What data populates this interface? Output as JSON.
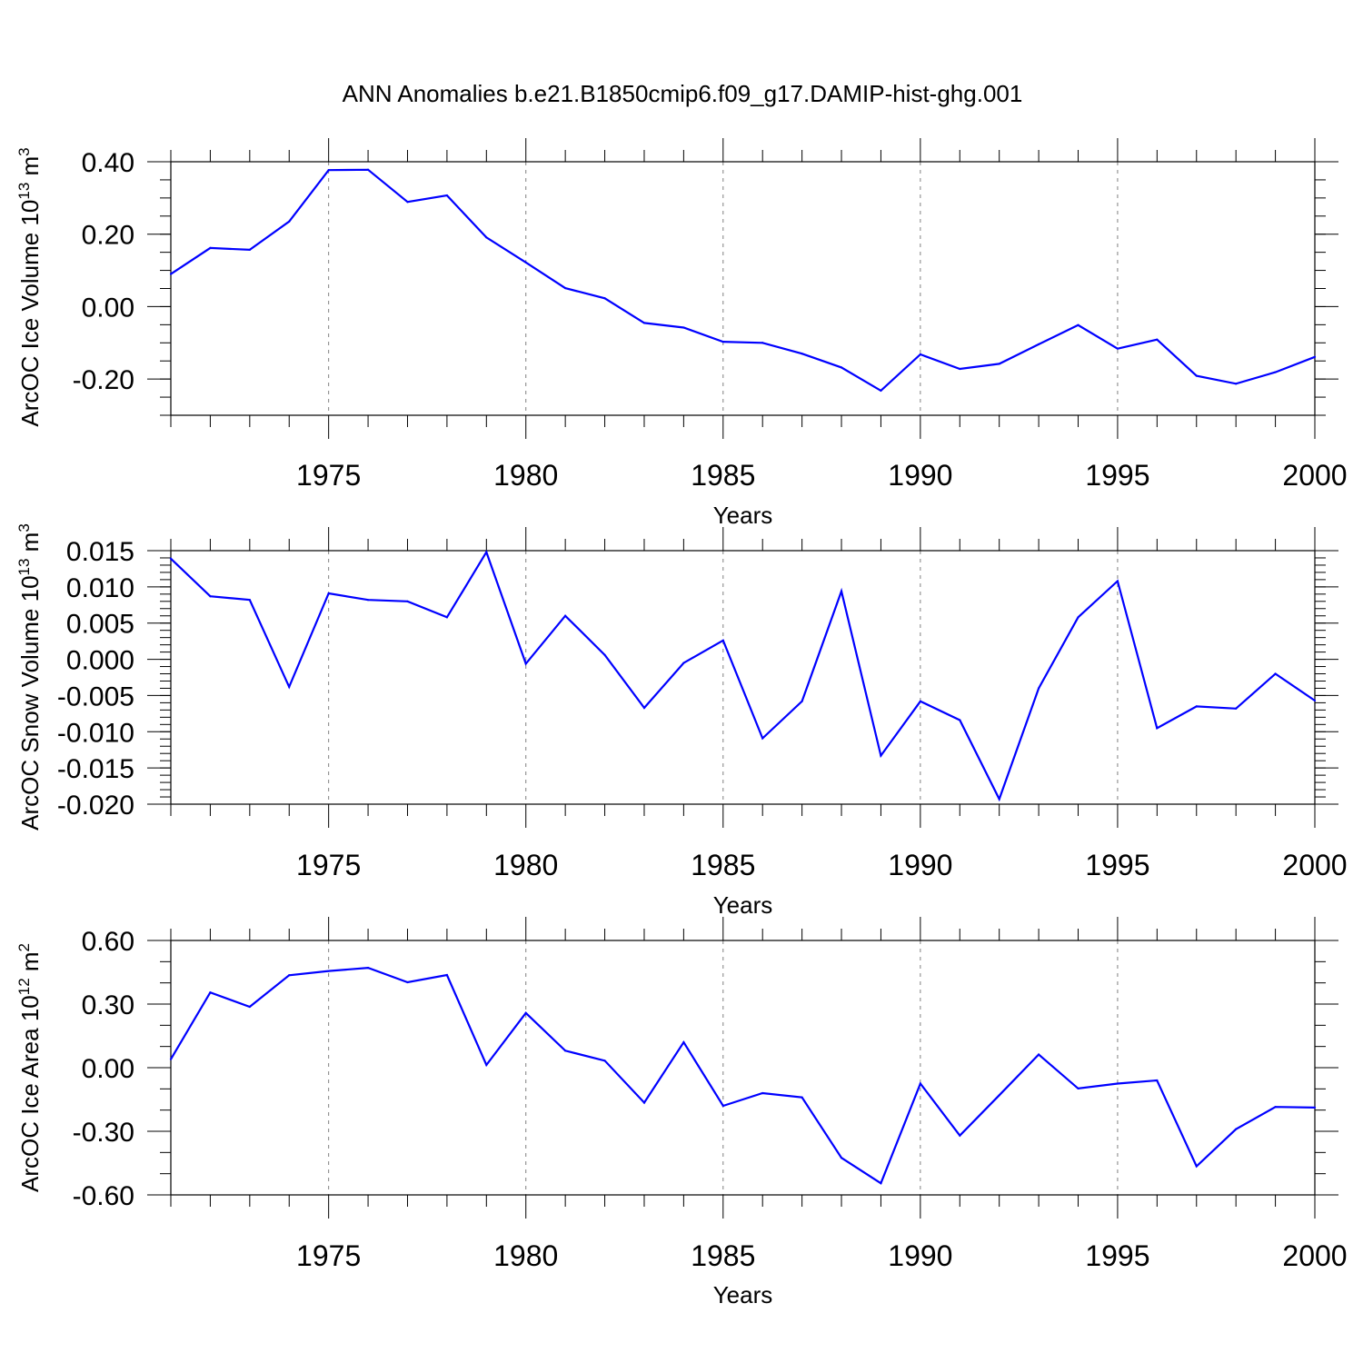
{
  "title": "ANN Anomalies b.e21.B1850cmip6.f09_g17.DAMIP-hist-ghg.001",
  "line_color": "#0000ff",
  "chart_data": [
    {
      "type": "line",
      "ylabel": "ArcOC Ice Volume 10",
      "ylabel_exp": "13",
      "ylabel_unit": " m",
      "ylabel_unit_exp": "3",
      "xlabel": "Years",
      "xlim": [
        1971,
        2000
      ],
      "ylim": [
        -0.3,
        0.4
      ],
      "yticks": [
        0.4,
        0.2,
        0.0,
        -0.2
      ],
      "ytick_labels": [
        "0.40",
        "0.20",
        "0.00",
        "-0.20"
      ],
      "xticks": [
        1975,
        1980,
        1985,
        1990,
        1995,
        2000
      ],
      "xtick_labels": [
        "1975",
        "1980",
        "1985",
        "1990",
        "1995",
        "2000"
      ],
      "x": [
        1971,
        1972,
        1973,
        1974,
        1975,
        1976,
        1977,
        1978,
        1979,
        1980,
        1981,
        1982,
        1983,
        1984,
        1985,
        1986,
        1987,
        1988,
        1989,
        1990,
        1991,
        1992,
        1993,
        1994,
        1995,
        1996,
        1997,
        1998,
        1999,
        2000
      ],
      "values": [
        0.09,
        0.162,
        0.157,
        0.235,
        0.377,
        0.378,
        0.289,
        0.307,
        0.191,
        0.122,
        0.051,
        0.023,
        -0.045,
        -0.058,
        -0.097,
        -0.1,
        -0.13,
        -0.168,
        -0.232,
        -0.132,
        -0.172,
        -0.158,
        -0.104,
        -0.051,
        -0.116,
        -0.091,
        -0.191,
        -0.213,
        -0.181,
        -0.139
      ]
    },
    {
      "type": "line",
      "ylabel": "ArcOC Snow Volume 10",
      "ylabel_exp": "13",
      "ylabel_unit": " m",
      "ylabel_unit_exp": "3",
      "xlabel": "Years",
      "xlim": [
        1971,
        2000
      ],
      "ylim": [
        -0.02,
        0.015
      ],
      "yticks": [
        0.015,
        0.01,
        0.005,
        0.0,
        -0.005,
        -0.01,
        -0.015,
        -0.02
      ],
      "ytick_labels": [
        "0.015",
        "0.010",
        "0.005",
        "0.000",
        "-0.005",
        "-0.010",
        "-0.015",
        "-0.020"
      ],
      "xticks": [
        1975,
        1980,
        1985,
        1990,
        1995,
        2000
      ],
      "xtick_labels": [
        "1975",
        "1980",
        "1985",
        "1990",
        "1995",
        "2000"
      ],
      "x": [
        1971,
        1972,
        1973,
        1974,
        1975,
        1976,
        1977,
        1978,
        1979,
        1980,
        1981,
        1982,
        1983,
        1984,
        1985,
        1986,
        1987,
        1988,
        1989,
        1990,
        1991,
        1992,
        1993,
        1994,
        1995,
        1996,
        1997,
        1998,
        1999,
        2000
      ],
      "values": [
        0.0139,
        0.0087,
        0.0082,
        -0.0038,
        0.0091,
        0.0082,
        0.008,
        0.0058,
        0.0148,
        -0.0006,
        0.006,
        0.0006,
        -0.0067,
        -0.0005,
        0.0026,
        -0.0109,
        -0.0058,
        0.0094,
        -0.0133,
        -0.0058,
        -0.0084,
        -0.0193,
        -0.004,
        0.0058,
        0.0108,
        -0.0095,
        -0.0065,
        -0.0068,
        -0.002,
        -0.0057
      ]
    },
    {
      "type": "line",
      "ylabel": "ArcOC Ice Area 10",
      "ylabel_exp": "12",
      "ylabel_unit": " m",
      "ylabel_unit_exp": "2",
      "xlabel": "Years",
      "xlim": [
        1971,
        2000
      ],
      "ylim": [
        -0.6,
        0.6
      ],
      "yticks": [
        0.6,
        0.3,
        0.0,
        -0.3,
        -0.6
      ],
      "ytick_labels": [
        "0.60",
        "0.30",
        "0.00",
        "-0.30",
        "-0.60"
      ],
      "xticks": [
        1975,
        1980,
        1985,
        1990,
        1995,
        2000
      ],
      "xtick_labels": [
        "1975",
        "1980",
        "1985",
        "1990",
        "1995",
        "2000"
      ],
      "x": [
        1971,
        1972,
        1973,
        1974,
        1975,
        1976,
        1977,
        1978,
        1979,
        1980,
        1981,
        1982,
        1983,
        1984,
        1985,
        1986,
        1987,
        1988,
        1989,
        1990,
        1991,
        1992,
        1993,
        1994,
        1995,
        1996,
        1997,
        1998,
        1999,
        2000
      ],
      "values": [
        0.04,
        0.355,
        0.287,
        0.436,
        0.456,
        0.471,
        0.403,
        0.437,
        0.013,
        0.258,
        0.08,
        0.033,
        -0.165,
        0.12,
        -0.18,
        -0.12,
        -0.14,
        -0.425,
        -0.545,
        -0.075,
        -0.32,
        -0.13,
        0.062,
        -0.098,
        -0.075,
        -0.06,
        -0.465,
        -0.29,
        -0.185,
        -0.188
      ]
    }
  ]
}
